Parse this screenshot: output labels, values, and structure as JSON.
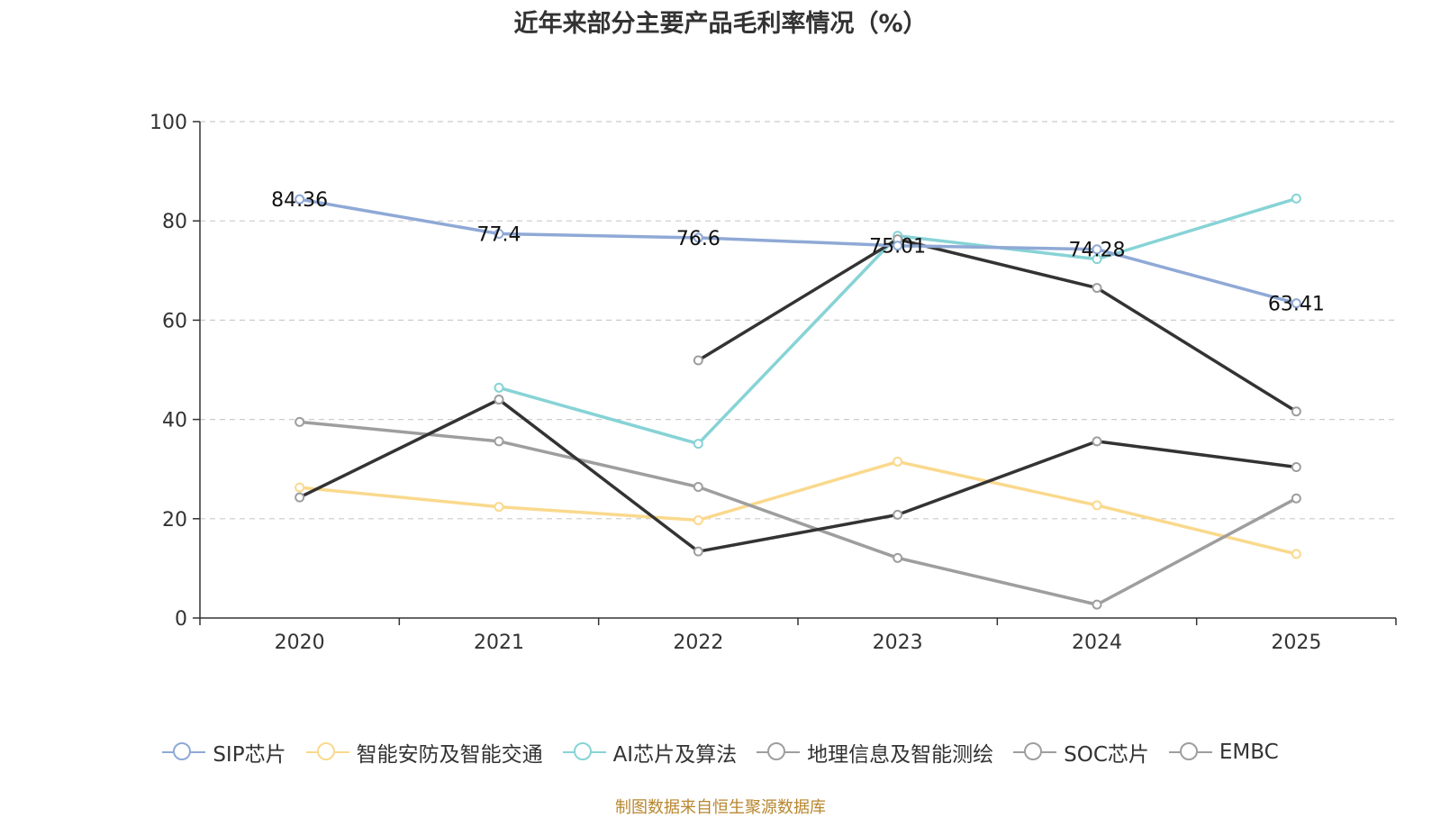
{
  "chart_data": {
    "type": "line",
    "title": "近年来部分主要产品毛利率情况（%）",
    "categories": [
      "2020",
      "2021",
      "2022",
      "2023",
      "2024",
      "2025"
    ],
    "ylim": [
      0,
      100
    ],
    "yticks": [
      0,
      20,
      40,
      60,
      80,
      100
    ],
    "grid": true,
    "legend_position": "bottom",
    "series": [
      {
        "name": "SIP芯片",
        "color": "#8fa9d6",
        "values": [
          84.36,
          77.4,
          76.6,
          75.01,
          74.28,
          63.41
        ],
        "labels": [
          "84.36",
          "77.4",
          "76.6",
          "75.01",
          "74.28",
          "63.41"
        ]
      },
      {
        "name": "智能安防及智能交通",
        "color": "#fad98d",
        "values": [
          26.3,
          22.4,
          19.7,
          31.5,
          22.7,
          12.9
        ]
      },
      {
        "name": "AI芯片及算法",
        "color": "#87d3d6",
        "values": [
          null,
          46.4,
          35.1,
          77.0,
          72.3,
          84.5
        ]
      },
      {
        "name": "地理信息及智能测绘",
        "color": "#9e9e9e",
        "values": [
          39.5,
          35.6,
          26.4,
          12.1,
          2.7,
          24.1
        ]
      },
      {
        "name": "SOC芯片",
        "color": "#333333",
        "values": [
          24.3,
          44.0,
          13.4,
          20.8,
          35.6,
          30.4
        ]
      },
      {
        "name": "EMBC",
        "color": "#333333",
        "legend_color": "#9e9e9e",
        "values": [
          null,
          null,
          51.9,
          76.3,
          66.5,
          41.6
        ]
      }
    ]
  },
  "source": "制图数据来自恒生聚源数据库"
}
